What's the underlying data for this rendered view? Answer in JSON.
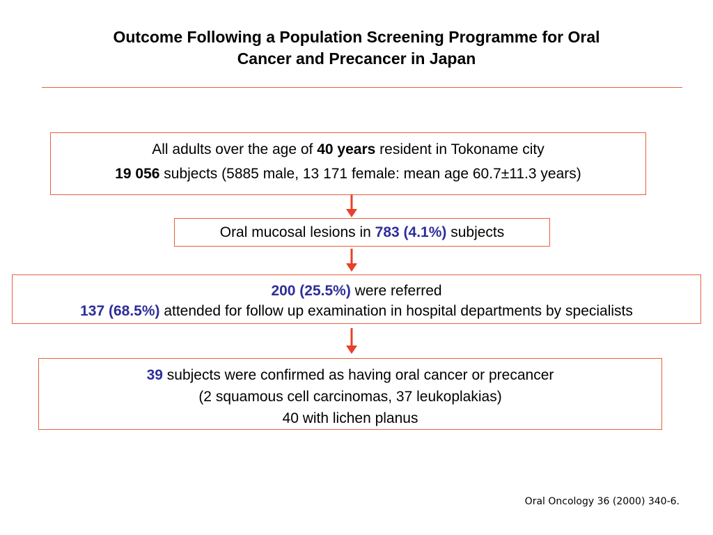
{
  "title": {
    "line1": "Outcome Following a Population Screening Programme for Oral",
    "line2": "Cancer and Precancer in Japan"
  },
  "colors": {
    "border": "#e8603a",
    "arrow": "#e8402a",
    "highlight": "#2e2e9a"
  },
  "box1": {
    "line1_prefix": "All adults over the age of ",
    "line1_bold": "40 years",
    "line1_suffix": " resident in Tokoname city",
    "line2_bold": "19 056",
    "line2_text": " subjects (5885 male, 13 171 female: mean age 60.7±11.3 years)"
  },
  "box2": {
    "prefix": "Oral mucosal lesions in ",
    "highlight": "783 (4.1%)",
    "suffix": " subjects"
  },
  "box3": {
    "line1_highlight": "200 (25.5%)",
    "line1_text": " were referred",
    "line2_highlight": "137 (68.5%)",
    "line2_text": " attended for follow up examination in hospital departments by specialists"
  },
  "box4": {
    "line1_highlight": "39",
    "line1_text": " subjects were confirmed as having oral cancer or precancer",
    "line2": "(2 squamous cell carcinomas, 37 leukoplakias)",
    "line3": "40 with lichen planus"
  },
  "arrows": [
    {
      "icon": "arrow-down-icon"
    },
    {
      "icon": "arrow-down-icon"
    },
    {
      "icon": "arrow-down-icon"
    }
  ],
  "citation": "Oral Oncology 36 (2000) 340-6."
}
